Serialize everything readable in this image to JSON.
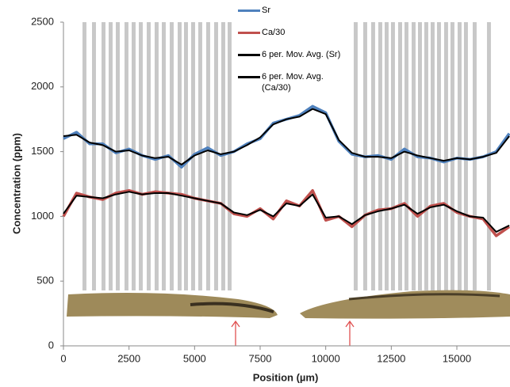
{
  "chart_data": {
    "type": "line",
    "x_label": "Position (µm)",
    "y_label": "Concentration (ppm)",
    "x": [
      0,
      500,
      1000,
      1500,
      2000,
      2500,
      3000,
      3500,
      4000,
      4500,
      5000,
      5500,
      6000,
      6500,
      7000,
      7500,
      8000,
      8500,
      9000,
      9500,
      10000,
      10500,
      11000,
      11500,
      12000,
      12500,
      13000,
      13500,
      14000,
      14500,
      15000,
      15500,
      16000,
      16500,
      17000
    ],
    "series": [
      {
        "name": "Sr",
        "color": "#4f81bd",
        "width": 3.5,
        "values": [
          1600,
          1650,
          1560,
          1560,
          1490,
          1520,
          1470,
          1440,
          1470,
          1380,
          1480,
          1530,
          1470,
          1500,
          1560,
          1600,
          1720,
          1750,
          1780,
          1850,
          1800,
          1580,
          1480,
          1460,
          1470,
          1440,
          1520,
          1460,
          1450,
          1420,
          1450,
          1440,
          1460,
          1500,
          1640
        ]
      },
      {
        "name": "Ca/30",
        "color": "#c0504d",
        "width": 3.5,
        "values": [
          1000,
          1180,
          1150,
          1130,
          1180,
          1200,
          1170,
          1190,
          1180,
          1170,
          1140,
          1120,
          1100,
          1020,
          1000,
          1060,
          980,
          1120,
          1080,
          1200,
          970,
          1000,
          920,
          1010,
          1050,
          1060,
          1100,
          1000,
          1080,
          1100,
          1030,
          1000,
          980,
          850,
          920
        ]
      },
      {
        "name": "6 per. Mov. Avg. (Sr)",
        "color": "#000000",
        "width": 2,
        "values": [
          1620,
          1630,
          1570,
          1550,
          1500,
          1510,
          1470,
          1450,
          1460,
          1400,
          1470,
          1510,
          1480,
          1500,
          1550,
          1610,
          1710,
          1750,
          1770,
          1830,
          1790,
          1590,
          1490,
          1460,
          1460,
          1450,
          1500,
          1470,
          1450,
          1430,
          1450,
          1440,
          1460,
          1490,
          1620
        ]
      },
      {
        "name": "6 per. Mov. Avg. (Ca/30)",
        "color": "#000000",
        "width": 2,
        "values": [
          1020,
          1160,
          1150,
          1140,
          1170,
          1190,
          1170,
          1180,
          1180,
          1160,
          1140,
          1120,
          1100,
          1030,
          1010,
          1050,
          1000,
          1100,
          1080,
          1170,
          990,
          1000,
          940,
          1010,
          1040,
          1060,
          1090,
          1020,
          1070,
          1090,
          1040,
          1000,
          990,
          880,
          930
        ]
      }
    ],
    "shaded_x": [
      726,
      1089,
      1452,
      1724,
      1996,
      2328,
      2601,
      2873,
      3175,
      3478,
      3750,
      4052,
      4355,
      4597,
      4869,
      5141,
      5443,
      5746,
      6018,
      6260,
      11068,
      11431,
      11733,
      12005,
      12247,
      12489,
      12762,
      13003,
      13276,
      13518,
      13759,
      14001,
      14243,
      14515,
      14757,
      15029,
      15271,
      15604,
      16148
    ],
    "shade_width": 150,
    "shade_color": "#c8c8c8",
    "xlim": [
      0,
      17000
    ],
    "xticks": [
      0,
      2500,
      5000,
      7500,
      10000,
      12500,
      15000
    ],
    "ylim": [
      0,
      2500
    ],
    "yticks": [
      0,
      500,
      1000,
      1500,
      2000,
      2500
    ]
  }
}
